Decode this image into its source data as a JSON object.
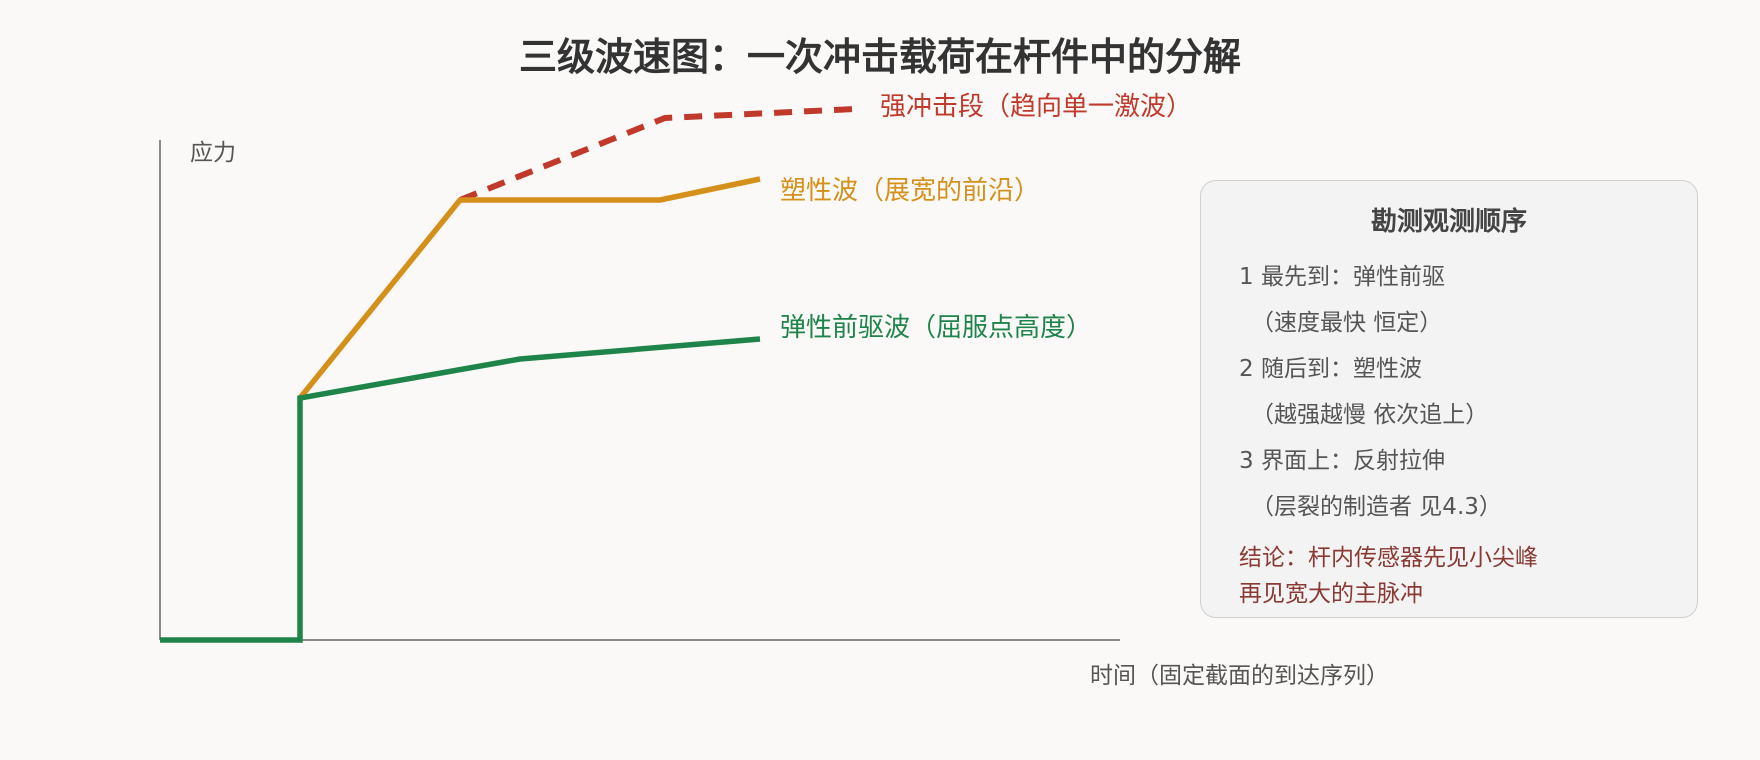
{
  "title": "三级波速图：一次冲击载荷在杆件中的分解",
  "axes": {
    "y_label": "应力",
    "x_label": "时间（固定截面的到达序列）"
  },
  "waves": [
    {
      "id": "strong",
      "label": "强冲击段（趋向单一激波）",
      "color": "#c0392b",
      "style": "dashed"
    },
    {
      "id": "plastic",
      "label": "塑性波（展宽的前沿）",
      "color": "#d4901a",
      "style": "solid"
    },
    {
      "id": "elastic",
      "label": "弹性前驱波（屈服点高度）",
      "color": "#1e8449",
      "style": "solid"
    }
  ],
  "legend": {
    "title": "勘测观测顺序",
    "items": [
      {
        "main": "1 最先到：弹性前驱",
        "sub": "（速度最快 恒定）"
      },
      {
        "main": "2 随后到：塑性波",
        "sub": "（越强越慢 依次追上）"
      },
      {
        "main": "3 界面上：反射拉伸",
        "sub": "（层裂的制造者 见4.3）"
      }
    ],
    "conclusion": "结论：杆内传感器先见小尖峰再见宽大的主脉冲"
  }
}
